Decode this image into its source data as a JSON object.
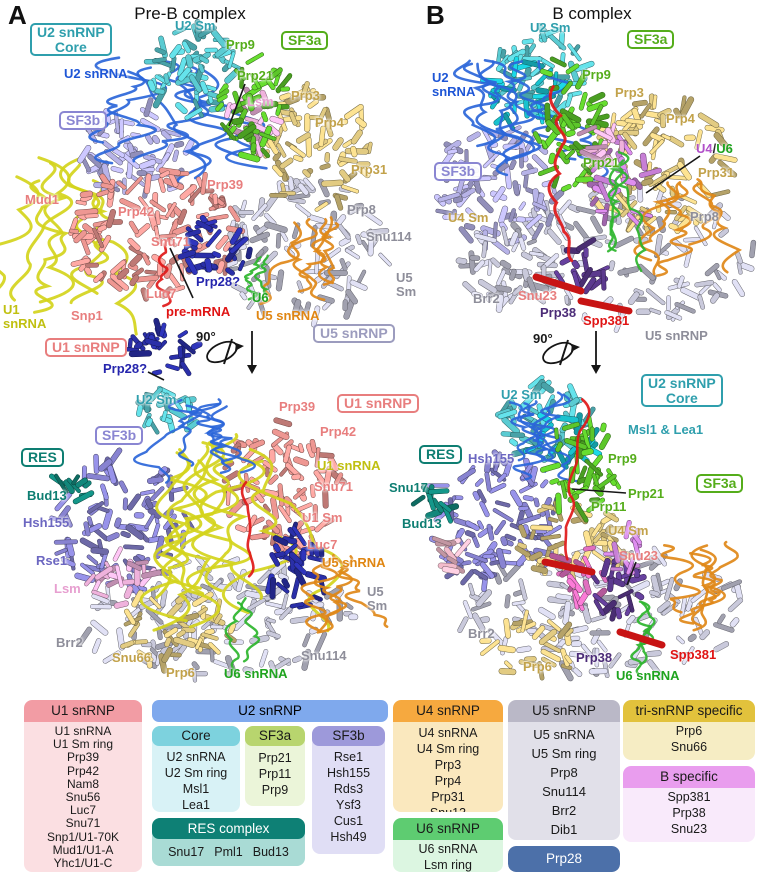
{
  "palette": {
    "teal": "#2F9FAD",
    "blue": "#1E56D6",
    "green": "#55AD1B",
    "tan": "#C2A24A",
    "pink": "#E79FD0",
    "salmon": "#E87E7E",
    "red": "#E01414",
    "navy": "#2525AD",
    "gray": "#8E8E9A",
    "purple": "#6C67C1",
    "dark_teal": "#0E7E72",
    "orange": "#E08612",
    "yellow": "#C0C011",
    "violet": "#B14FC9",
    "green_rna": "#1FA41F",
    "dark_purple": "#4B2B77",
    "black": "#1A1A1A",
    "box_sf3b": "#8A86D2",
    "box_u5": "#9C9CBE"
  },
  "panel_a": {
    "letter": "A",
    "title": "Pre-B complex",
    "top_labels": [
      {
        "id": "u2core_box",
        "text": "U2 snRNP\nCore",
        "color": "teal",
        "boxed": true
      },
      {
        "id": "u2sm",
        "text": "U2 Sm",
        "color": "teal"
      },
      {
        "id": "prp9",
        "text": "Prp9",
        "color": "green"
      },
      {
        "id": "sf3a_box",
        "text": "SF3a",
        "color": "green",
        "boxed": true
      },
      {
        "id": "prp21",
        "text": "Prp21",
        "color": "green"
      },
      {
        "id": "u2snrna",
        "text": "U2 snRNA",
        "color": "blue"
      },
      {
        "id": "lsm",
        "text": "Lsm",
        "color": "pink"
      },
      {
        "id": "prp3",
        "text": "Prp3",
        "color": "tan"
      },
      {
        "id": "sf3b_box",
        "text": "SF3b",
        "color": "box_sf3b",
        "boxed": true
      },
      {
        "id": "prp4",
        "text": "Prp4",
        "color": "tan"
      },
      {
        "id": "prp31",
        "text": "Prp31",
        "color": "tan"
      },
      {
        "id": "prp39",
        "text": "Prp39",
        "color": "salmon"
      },
      {
        "id": "mud1",
        "text": "Mud1",
        "color": "salmon"
      },
      {
        "id": "prp42",
        "text": "Prp42",
        "color": "salmon"
      },
      {
        "id": "prp8",
        "text": "Prp8",
        "color": "gray"
      },
      {
        "id": "snu71",
        "text": "Snu71",
        "color": "salmon"
      },
      {
        "id": "snu114",
        "text": "Snu114",
        "color": "gray"
      },
      {
        "id": "prp28a",
        "text": "Prp28?",
        "color": "navy"
      },
      {
        "id": "luc7",
        "text": "Luc7",
        "color": "salmon"
      },
      {
        "id": "u6",
        "text": "U6",
        "color": "green_rna"
      },
      {
        "id": "u5sm",
        "text": "U5\nSm",
        "color": "gray"
      },
      {
        "id": "u1snrna",
        "text": "U1\nsnRNA",
        "color": "yellow"
      },
      {
        "id": "snp1",
        "text": "Snp1",
        "color": "salmon"
      },
      {
        "id": "premrna",
        "text": "pre-mRNA",
        "color": "red"
      },
      {
        "id": "u5snrna",
        "text": "U5 snRNA",
        "color": "orange"
      },
      {
        "id": "u1snrnp_box",
        "text": "U1 snRNP",
        "color": "salmon",
        "boxed": true
      },
      {
        "id": "u5snrnp_box",
        "text": "U5 snRNP",
        "color": "box_u5",
        "boxed": true
      },
      {
        "id": "prp28b",
        "text": "Prp28?",
        "color": "navy"
      },
      {
        "id": "rot_a",
        "text": "90°",
        "color": "black"
      }
    ],
    "bottom_labels": [
      {
        "id": "u2sm",
        "text": "U2 Sm",
        "color": "teal"
      },
      {
        "id": "prp39",
        "text": "Prp39",
        "color": "salmon"
      },
      {
        "id": "u1snrnp_box",
        "text": "U1 snRNP",
        "color": "salmon",
        "boxed": true
      },
      {
        "id": "prp42",
        "text": "Prp42",
        "color": "salmon"
      },
      {
        "id": "sf3b_box",
        "text": "SF3b",
        "color": "box_sf3b",
        "boxed": true
      },
      {
        "id": "res_box",
        "text": "RES",
        "color": "dark_teal",
        "boxed": true
      },
      {
        "id": "u1snrna",
        "text": "U1 snRNA",
        "color": "yellow"
      },
      {
        "id": "bud13",
        "text": "Bud13",
        "color": "dark_teal"
      },
      {
        "id": "snu71",
        "text": "Snu71",
        "color": "salmon"
      },
      {
        "id": "hsh155",
        "text": "Hsh155",
        "color": "purple"
      },
      {
        "id": "u1sm",
        "text": "U1 Sm",
        "color": "salmon"
      },
      {
        "id": "luc7",
        "text": "Luc7",
        "color": "salmon"
      },
      {
        "id": "rse1",
        "text": "Rse1",
        "color": "purple"
      },
      {
        "id": "u5snrna",
        "text": "U5 snRNA",
        "color": "orange"
      },
      {
        "id": "lsm",
        "text": "Lsm",
        "color": "pink"
      },
      {
        "id": "u5sm",
        "text": "U5\nSm",
        "color": "gray"
      },
      {
        "id": "brr2",
        "text": "Brr2",
        "color": "gray"
      },
      {
        "id": "snu66",
        "text": "Snu66",
        "color": "tan"
      },
      {
        "id": "prp6",
        "text": "Prp6",
        "color": "tan"
      },
      {
        "id": "u6snrna",
        "text": "U6 snRNA",
        "color": "green_rna"
      },
      {
        "id": "snu114",
        "text": "Snu114",
        "color": "gray"
      }
    ]
  },
  "panel_b": {
    "letter": "B",
    "title": "B complex",
    "u4u6": {
      "u4": "U4",
      "slash": "/",
      "u6": "U6"
    },
    "top_labels": [
      {
        "id": "u2sm",
        "text": "U2 Sm",
        "color": "teal"
      },
      {
        "id": "sf3a_box",
        "text": "SF3a",
        "color": "green",
        "boxed": true
      },
      {
        "id": "u2snrna",
        "text": "U2\nsnRNA",
        "color": "blue"
      },
      {
        "id": "prp9",
        "text": "Prp9",
        "color": "green"
      },
      {
        "id": "prp3",
        "text": "Prp3",
        "color": "tan"
      },
      {
        "id": "prp4",
        "text": "Prp4",
        "color": "tan"
      },
      {
        "id": "prp31",
        "text": "Prp31",
        "color": "tan"
      },
      {
        "id": "sf3b_box",
        "text": "SF3b",
        "color": "box_sf3b",
        "boxed": true
      },
      {
        "id": "prp21",
        "text": "Prp21",
        "color": "green"
      },
      {
        "id": "u4sm",
        "text": "U4 Sm",
        "color": "tan"
      },
      {
        "id": "prp8",
        "text": "Prp8",
        "color": "gray"
      },
      {
        "id": "brr2",
        "text": "Brr2",
        "color": "gray"
      },
      {
        "id": "snu23",
        "text": "Snu23",
        "color": "salmon"
      },
      {
        "id": "prp38",
        "text": "Prp38",
        "color": "dark_purple"
      },
      {
        "id": "spp381",
        "text": "Spp381",
        "color": "red"
      },
      {
        "id": "u5snrnp",
        "text": "U5 snRNP",
        "color": "gray"
      },
      {
        "id": "rot_b",
        "text": "90°",
        "color": "black"
      }
    ],
    "bottom_labels": [
      {
        "id": "u2sm",
        "text": "U2 Sm",
        "color": "teal"
      },
      {
        "id": "u2core_box",
        "text": "U2 snRNP\nCore",
        "color": "teal",
        "boxed": true
      },
      {
        "id": "msl1lea1",
        "text": "Msl1 & Lea1",
        "color": "teal"
      },
      {
        "id": "res_box",
        "text": "RES",
        "color": "dark_teal",
        "boxed": true
      },
      {
        "id": "hsh155",
        "text": "Hsh155",
        "color": "purple"
      },
      {
        "id": "prp9",
        "text": "Prp9",
        "color": "green"
      },
      {
        "id": "snu17",
        "text": "Snu17",
        "color": "dark_teal"
      },
      {
        "id": "prp21",
        "text": "Prp21",
        "color": "green"
      },
      {
        "id": "sf3a_box",
        "text": "SF3a",
        "color": "green",
        "boxed": true
      },
      {
        "id": "prp11",
        "text": "Prp11",
        "color": "green"
      },
      {
        "id": "bud13",
        "text": "Bud13",
        "color": "dark_teal"
      },
      {
        "id": "u4sm",
        "text": "U4 Sm",
        "color": "tan"
      },
      {
        "id": "snu23",
        "text": "Snu23",
        "color": "salmon"
      },
      {
        "id": "brr2",
        "text": "Brr2",
        "color": "gray"
      },
      {
        "id": "prp6",
        "text": "Prp6",
        "color": "tan"
      },
      {
        "id": "prp38",
        "text": "Prp38",
        "color": "dark_purple"
      },
      {
        "id": "u6snrna",
        "text": "U6 snRNA",
        "color": "green_rna"
      },
      {
        "id": "spp381",
        "text": "Spp381",
        "color": "red"
      }
    ]
  },
  "legend": {
    "u1": {
      "title": "U1 snRNP",
      "header_color": "#F29CA4",
      "body_color": "#FBDFE2",
      "items": [
        "U1 snRNA",
        "U1 Sm ring",
        "Prp39",
        "Prp42",
        "Nam8",
        "Snu56",
        "Luc7",
        "Snu71",
        "Snp1/U1-70K",
        "Mud1/U1-A",
        "Yhc1/U1-C"
      ]
    },
    "u2": {
      "title": "U2 snRNP",
      "header_color": "#7FA9ED",
      "core": {
        "title": "Core",
        "header_color": "#7DD2DE",
        "body_color": "#D8F2F6",
        "items": [
          "U2 snRNA",
          "U2 Sm ring",
          "Msl1",
          "Lea1"
        ]
      },
      "sf3a": {
        "title": "SF3a",
        "header_color": "#B8D56E",
        "body_color": "#EBF5D9",
        "items": [
          "Prp21",
          "Prp11",
          "Prp9"
        ]
      },
      "sf3b": {
        "title": "SF3b",
        "header_color": "#9D99DA",
        "body_color": "#E0DEF5",
        "items": [
          "Rse1",
          "Hsh155",
          "Rds3",
          "Ysf3",
          "Cus1",
          "Hsh49"
        ]
      },
      "res": {
        "title": "RES complex",
        "header_color": "#0E8075",
        "header_text": "#FFFFFF",
        "body_color": "#A9DBD5",
        "items": [
          "Snu17",
          "Pml1",
          "Bud13"
        ]
      }
    },
    "u4": {
      "title": "U4 snRNP",
      "header_color": "#F6A93F",
      "body_color": "#FAE8BE",
      "items": [
        "U4 snRNA",
        "U4 Sm ring",
        "Prp3",
        "Prp4",
        "Prp31",
        "Snu13"
      ]
    },
    "u6": {
      "title": "U6 snRNP",
      "header_color": "#5ECC71",
      "body_color": "#DCF6E1",
      "items": [
        "U6 snRNA",
        "Lsm ring"
      ]
    },
    "u5": {
      "title": "U5 snRNP",
      "header_color": "#BAB8C7",
      "body_color": "#E1E0E9",
      "items": [
        "U5 snRNA",
        "U5 Sm ring",
        "Prp8",
        "Snu114",
        "Brr2",
        "Dib1"
      ]
    },
    "prp28": {
      "title": "Prp28",
      "header_color": "#4C70A9",
      "header_text": "#FFFFFF"
    },
    "tri": {
      "title": "tri-snRNP specific",
      "header_color": "#E2C23C",
      "body_color": "#F6EDC4",
      "items": [
        "Prp6",
        "Snu66"
      ]
    },
    "b_specific": {
      "title": "B specific",
      "header_color": "#E99DEE",
      "body_color": "#F9EAFB",
      "items": [
        "Spp381",
        "Prp38",
        "Snu23"
      ]
    }
  }
}
